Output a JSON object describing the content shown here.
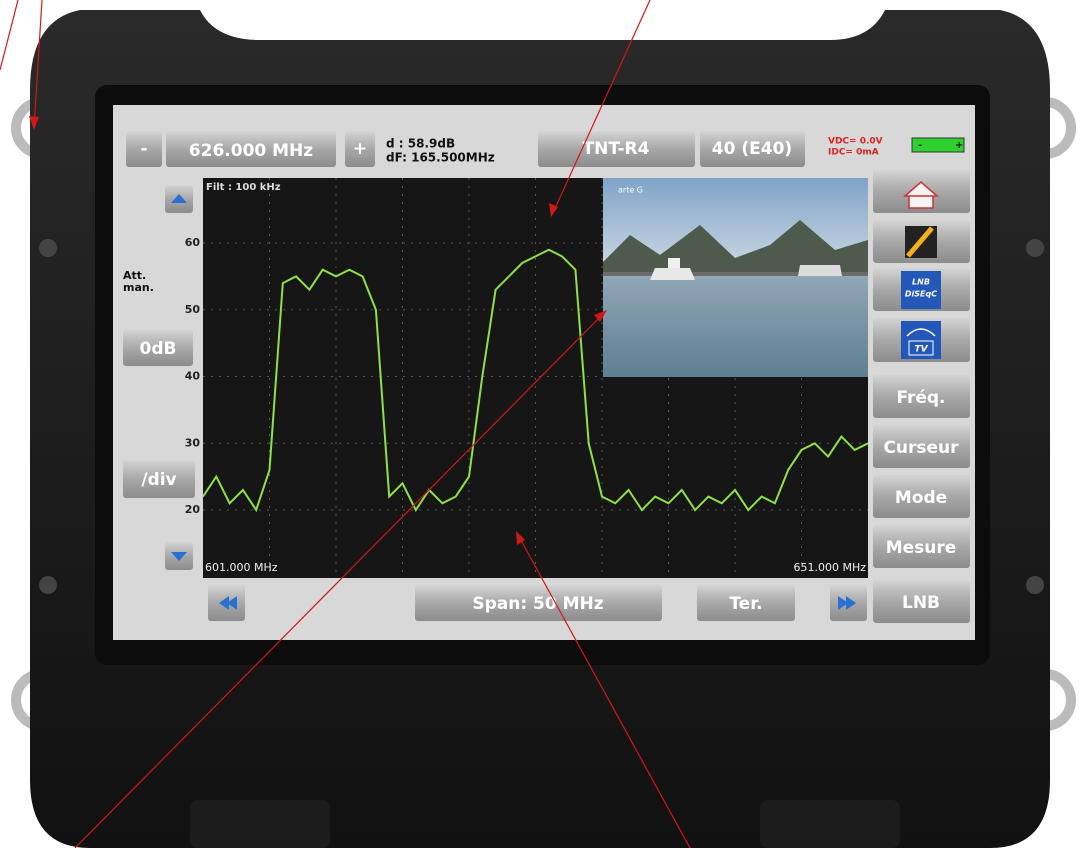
{
  "top_bar": {
    "minus": "-",
    "frequency": "626.000 MHz",
    "plus": "+",
    "delta_level": "d : 58.9dB",
    "delta_freq": "dF: 165.500MHz",
    "standard": "TNT-R4",
    "channel": "40 (E40)",
    "vdc": "VDC= 0.0V",
    "idc": "IDC= 0mA",
    "battery_minus": "-",
    "battery_plus": "+"
  },
  "left_panel": {
    "att_line1": "Att.",
    "att_line2": "man.",
    "attenuation": "0dB",
    "scale": "/div"
  },
  "spectrum": {
    "filter": "Filt : 100 kHz",
    "start": "601.000 MHz",
    "stop": "651.000 MHz",
    "xlim": [
      601,
      651
    ],
    "ylim": [
      20,
      60
    ],
    "yticks": [
      60,
      50,
      40,
      30,
      20
    ],
    "trace": {
      "x": [
        601,
        602,
        603,
        604,
        605,
        606,
        607,
        608,
        609,
        610,
        611,
        612,
        613,
        614,
        615,
        616,
        617,
        618,
        619,
        620,
        621,
        622,
        623,
        624,
        625,
        626,
        627,
        628,
        629,
        630,
        631,
        632,
        633,
        634,
        635,
        636,
        637,
        638,
        639,
        640,
        641,
        642,
        643,
        644,
        645,
        646,
        647,
        648,
        649,
        650,
        651
      ],
      "values": [
        22,
        25,
        21,
        23,
        20,
        26,
        54,
        55,
        53,
        56,
        55,
        56,
        55,
        50,
        22,
        24,
        20,
        23,
        21,
        22,
        25,
        40,
        53,
        55,
        57,
        58,
        59,
        58,
        56,
        30,
        22,
        21,
        23,
        20,
        22,
        21,
        23,
        20,
        22,
        21,
        23,
        20,
        22,
        21,
        26,
        29,
        30,
        28,
        31,
        29,
        30
      ]
    },
    "inset_label": "arte G"
  },
  "right_panel": {
    "buttons": [
      "Fréq.",
      "Curseur",
      "Mode",
      "Mesure",
      "LNB"
    ],
    "lnb_icon_line1": "LNB",
    "lnb_icon_line2": "DiSEqC",
    "tv_icon": "TV"
  },
  "bottom_bar": {
    "span": "Span: 50 MHz",
    "band": "Ter."
  }
}
